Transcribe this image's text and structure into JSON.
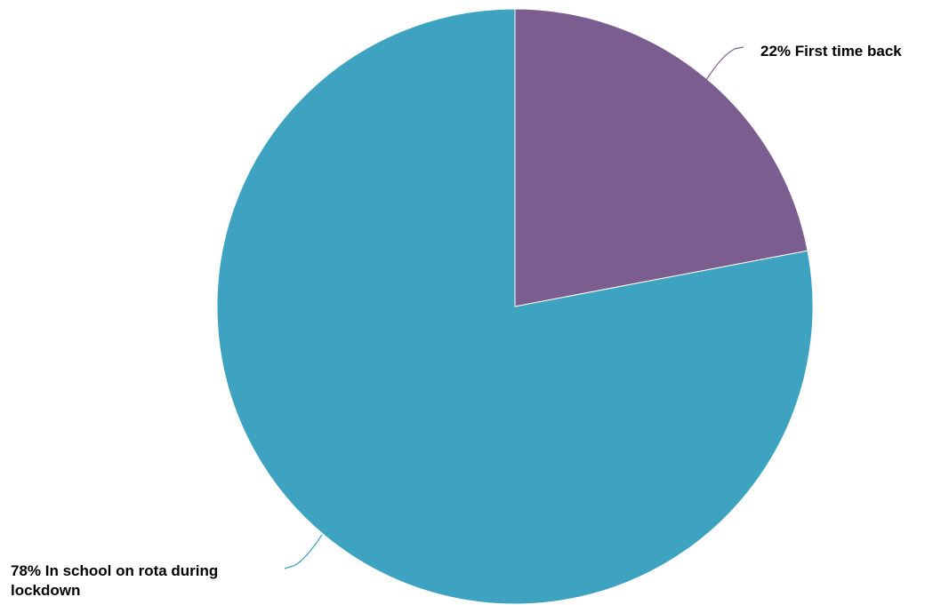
{
  "chart_data": {
    "type": "pie",
    "title": "",
    "slices": [
      {
        "label": "22% First time back",
        "value": 22,
        "color": "#7b5e8f"
      },
      {
        "label": "78% In school on rota during lockdown",
        "value": 78,
        "color": "#3ea2c1"
      }
    ],
    "start_angle": "12 o'clock",
    "direction": "clockwise"
  }
}
